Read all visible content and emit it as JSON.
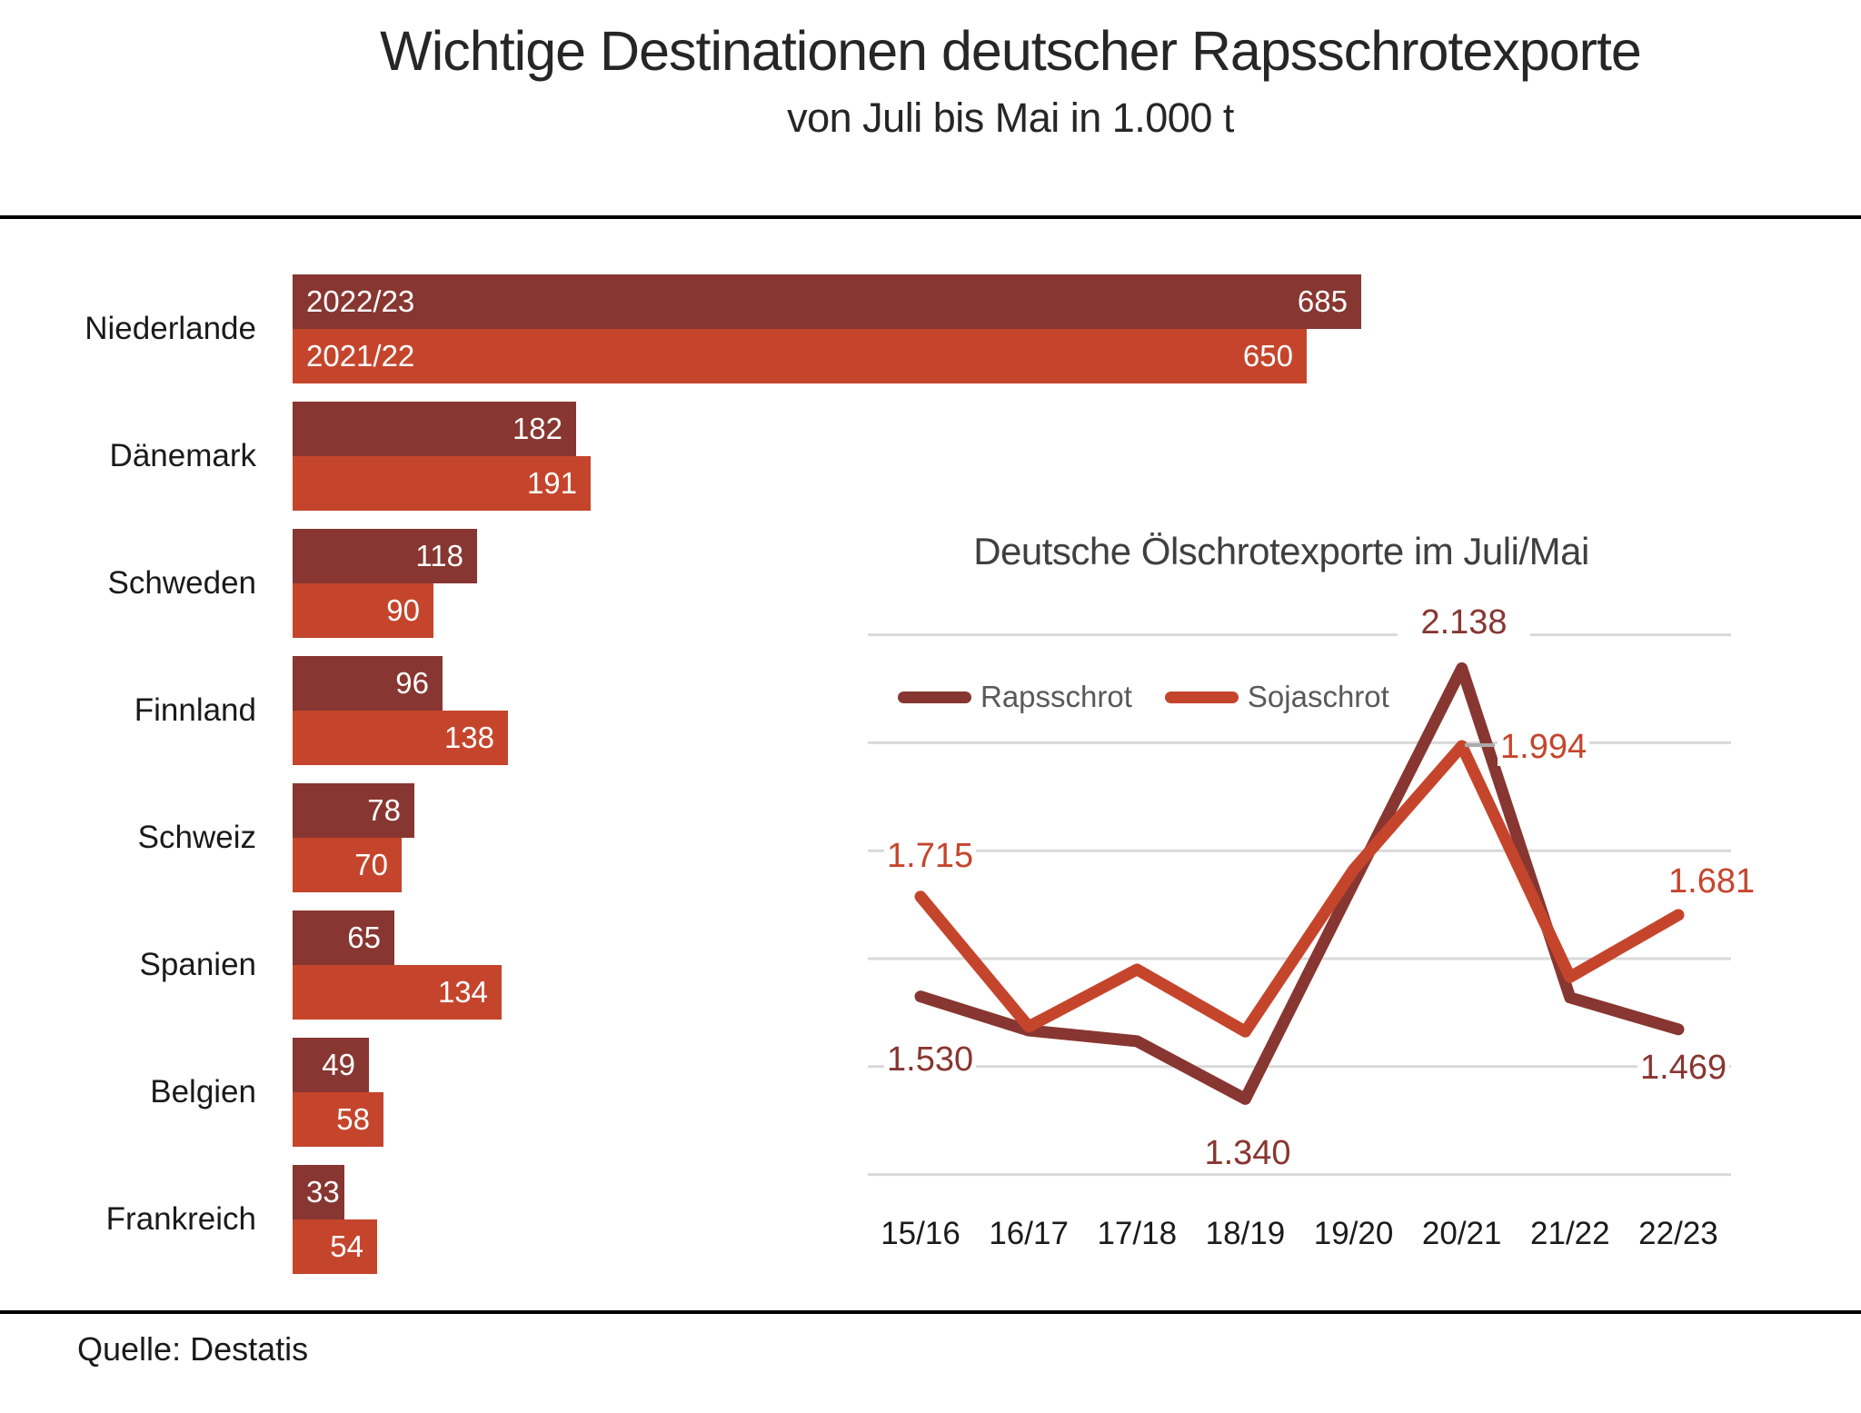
{
  "page": {
    "title": "Wichtige Destinationen deutscher Rapsschrotexporte",
    "subtitle": "von Juli bis Mai in 1.000 t",
    "source": "Quelle: Destatis"
  },
  "colors": {
    "dark_red": "#883631",
    "orange_red": "#C5452C",
    "gridline": "#D9D9D9",
    "legend_text": "#595959",
    "bar_value_text": "#FFFFFF",
    "leader_line": "#ABABAB"
  },
  "chart_data": [
    {
      "type": "bar",
      "orientation": "horizontal",
      "title": "Wichtige Destinationen deutscher Rapsschrotexporte",
      "subtitle": "von Juli bis Mai in 1.000 t",
      "unit": "1.000 t",
      "categories": [
        "Niederlande",
        "Dänemark",
        "Schweden",
        "Finnland",
        "Schweiz",
        "Spanien",
        "Belgien",
        "Frankreich"
      ],
      "series": [
        {
          "name": "2022/23",
          "color": "#883631",
          "values": [
            685,
            182,
            118,
            96,
            78,
            65,
            49,
            33
          ]
        },
        {
          "name": "2021/22",
          "color": "#C5452C",
          "values": [
            650,
            191,
            90,
            138,
            70,
            134,
            58,
            54
          ]
        }
      ],
      "xlim": [
        0,
        722
      ],
      "value_labels_inside_bars": true,
      "series_name_shown_in_first_bar_pair": true
    },
    {
      "type": "line",
      "title": "Deutsche Ölschrotexporte im Juli/Mai",
      "categories": [
        "15/16",
        "16/17",
        "17/18",
        "18/19",
        "19/20",
        "20/21",
        "21/22",
        "22/23"
      ],
      "series": [
        {
          "name": "Rapsschrot",
          "color": "#883631",
          "values": [
            1530,
            1467,
            1447,
            1340,
            1740,
            2138,
            1528,
            1469
          ],
          "point_labels": [
            "1.530",
            null,
            null,
            "1.340",
            null,
            "2.138",
            null,
            "1.469"
          ]
        },
        {
          "name": "Sojaschrot",
          "color": "#C5452C",
          "values": [
            1715,
            1474,
            1580,
            1465,
            1765,
            1994,
            1566,
            1681
          ],
          "point_labels": [
            "1.715",
            null,
            null,
            null,
            null,
            "1.994",
            null,
            "1.681"
          ]
        }
      ],
      "ylim": [
        1200,
        2200
      ],
      "gridline_step": 200,
      "grid": true,
      "legend_position": "inside top-left"
    }
  ]
}
